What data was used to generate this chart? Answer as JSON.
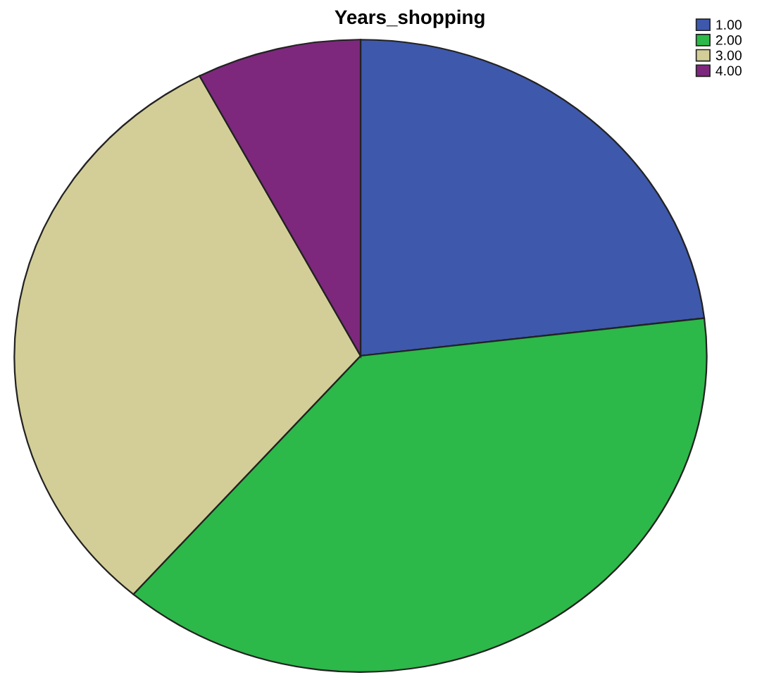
{
  "chart_data": {
    "type": "pie",
    "title": "Years_shopping",
    "categories": [
      "1.00",
      "2.00",
      "3.00",
      "4.00"
    ],
    "values": [
      23.1,
      38.3,
      30.9,
      7.7
    ],
    "colors": [
      "#3e58ac",
      "#2db84a",
      "#d3ce97",
      "#7d287d"
    ],
    "legend": "top right"
  }
}
